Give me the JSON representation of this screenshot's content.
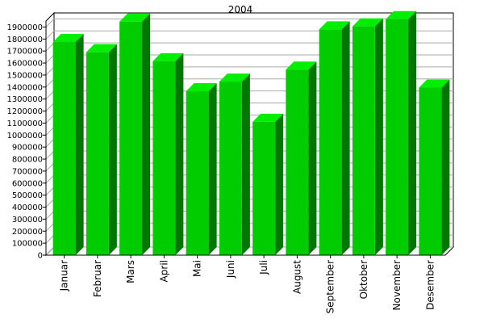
{
  "chart_data": {
    "type": "bar",
    "title": "2004",
    "xlabel": "",
    "ylabel": "",
    "categories": [
      "Januar",
      "Februar",
      "Mars",
      "April",
      "Mai",
      "Juni",
      "Juli",
      "August",
      "September",
      "Oktober",
      "November",
      "Desember"
    ],
    "values": [
      1775000,
      1690000,
      1945000,
      1615000,
      1365000,
      1445000,
      1110000,
      1545000,
      1880000,
      1905000,
      1965000,
      1395000
    ],
    "ylim": [
      0,
      1950000
    ],
    "ytick_step": 100000,
    "grid": true,
    "style": "3d",
    "colors": {
      "bar_front": "#00cc00",
      "bar_top": "#00ee00",
      "bar_side": "#007700",
      "grid": "#aaaaaa",
      "wall": "#ffffff",
      "frame": "#000000"
    }
  }
}
